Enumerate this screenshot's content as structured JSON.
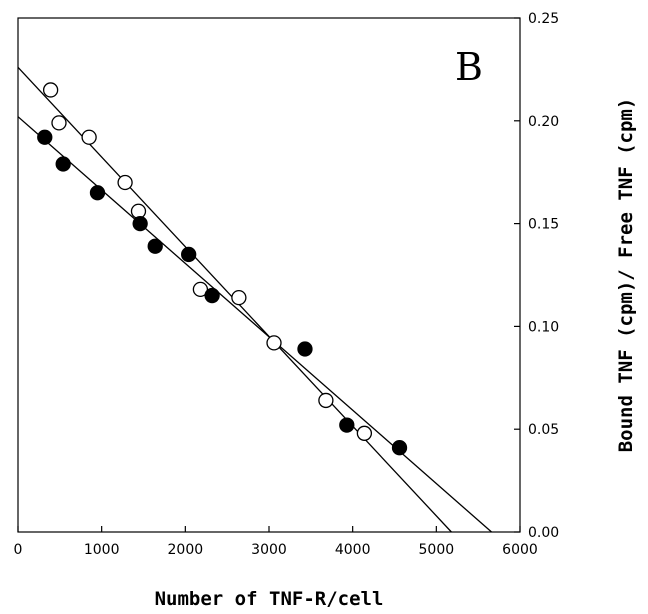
{
  "chart_data": {
    "type": "scatter",
    "panel_label": "B",
    "xlabel": "Number of TNF-R/cell",
    "ylabel": "Bound TNF (cpm)/ Free TNF (cpm)",
    "xlim": [
      0,
      6000
    ],
    "ylim": [
      0,
      0.25
    ],
    "x_ticks": [
      0,
      1000,
      2000,
      3000,
      4000,
      5000,
      6000
    ],
    "x_tick_labels": [
      "0",
      "1000",
      "2000",
      "3000",
      "4000",
      "5000",
      "6000"
    ],
    "y_ticks": [
      0,
      0.05,
      0.1,
      0.15,
      0.2,
      0.25
    ],
    "y_tick_labels": [
      "0.00",
      "0.05",
      "0.10",
      "0.15",
      "0.20",
      "0.25"
    ],
    "y_axis_side": "right",
    "grid": false,
    "series": [
      {
        "marker": "open-circle",
        "points": [
          [
            390,
            0.215
          ],
          [
            490,
            0.199
          ],
          [
            850,
            0.192
          ],
          [
            1280,
            0.17
          ],
          [
            1440,
            0.156
          ],
          [
            2180,
            0.118
          ],
          [
            2640,
            0.114
          ],
          [
            3060,
            0.092
          ],
          [
            3680,
            0.064
          ],
          [
            4140,
            0.048
          ]
        ],
        "fit_line": [
          [
            0,
            0.226
          ],
          [
            5180,
            0.0
          ]
        ]
      },
      {
        "marker": "filled-circle",
        "points": [
          [
            320,
            0.192
          ],
          [
            540,
            0.179
          ],
          [
            950,
            0.165
          ],
          [
            1460,
            0.15
          ],
          [
            1640,
            0.139
          ],
          [
            2040,
            0.135
          ],
          [
            2320,
            0.115
          ],
          [
            3430,
            0.089
          ],
          [
            3930,
            0.052
          ],
          [
            4560,
            0.041
          ]
        ],
        "fit_line": [
          [
            0,
            0.202
          ],
          [
            5660,
            0.0
          ]
        ]
      }
    ]
  }
}
